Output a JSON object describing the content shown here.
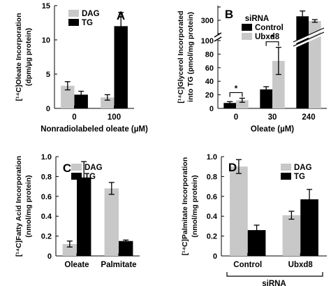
{
  "colors": {
    "DAG": "#c8c8c8",
    "TG": "#000000",
    "Control": "#000000",
    "Ubxd8": "#c8c8c8"
  },
  "chart_data": [
    {
      "panel": "A",
      "type": "bar",
      "ylabel_lines": [
        "[¹⁴C]Oleate Incorporation",
        "(dpm/µg protein)"
      ],
      "xlabel": "Nonradiolabeled oleate (µM)",
      "categories": [
        "0",
        "100"
      ],
      "ylim": [
        0,
        15
      ],
      "yticks": [
        "0",
        "5",
        "10",
        "15"
      ],
      "legend_position": "top-left",
      "series": [
        {
          "name": "DAG",
          "color_key": "DAG",
          "values": [
            3.3,
            1.6
          ],
          "errors": [
            0.6,
            0.4
          ]
        },
        {
          "name": "TG",
          "color_key": "TG",
          "values": [
            2.0,
            12.0
          ],
          "errors": [
            0.5,
            2.0
          ]
        }
      ],
      "significance": []
    },
    {
      "panel": "B",
      "type": "bar",
      "ylabel_lines": [
        "[¹⁴C]Glycerol Incorporated",
        "into TG (pmol/mg protein)"
      ],
      "xlabel": "Oleate (µM)",
      "categories": [
        "0",
        "30",
        "240"
      ],
      "ylim_lower": [
        0,
        100
      ],
      "yticks_lower": [
        "0",
        "20",
        "40",
        "60",
        "80",
        "100"
      ],
      "yticks_upper": [
        "200",
        "300",
        "400"
      ],
      "axis_break": true,
      "legend_title": "siRNA",
      "legend_position": "top-left",
      "series": [
        {
          "name": "Control",
          "color_key": "Control",
          "values": [
            8,
            28,
            330
          ],
          "errors": [
            2,
            4,
            40
          ]
        },
        {
          "name": "Ubxd8",
          "color_key": "Ubxd8",
          "values": [
            12,
            70,
            295
          ],
          "errors": [
            3,
            20,
            10
          ]
        }
      ],
      "significance": [
        {
          "category": "0",
          "text": "*"
        },
        {
          "category": "30",
          "text": "*"
        }
      ]
    },
    {
      "panel": "C",
      "type": "bar",
      "ylabel_lines": [
        "[¹⁴C]Fatty Acid Incorporation",
        "(nmol/mg protein)"
      ],
      "xlabel": "",
      "categories": [
        "Oleate",
        "Palmitate"
      ],
      "ylim": [
        0,
        1.0
      ],
      "yticks": [
        "0",
        "0.2",
        "0.4",
        "0.6",
        "0.8",
        "1.0"
      ],
      "legend_position": "top-left",
      "series": [
        {
          "name": "DAG",
          "color_key": "DAG",
          "values": [
            0.12,
            0.68
          ],
          "errors": [
            0.03,
            0.06
          ]
        },
        {
          "name": "TG",
          "color_key": "TG",
          "values": [
            0.79,
            0.15
          ],
          "errors": [
            0.16,
            0.01
          ]
        }
      ],
      "significance": []
    },
    {
      "panel": "D",
      "type": "bar",
      "ylabel_lines": [
        "[¹⁴C]Palmitate Incorporation",
        "(nmol/mg protein)"
      ],
      "xlabel": "siRNA",
      "xlabel_bracket": true,
      "categories": [
        "Control",
        "Ubxd8"
      ],
      "ylim": [
        0,
        1.0
      ],
      "yticks": [
        "0",
        "0.2",
        "0.4",
        "0.6",
        "0.8",
        "1.0"
      ],
      "legend_position": "top-right",
      "series": [
        {
          "name": "DAG",
          "color_key": "DAG",
          "values": [
            0.9,
            0.41
          ],
          "errors": [
            0.07,
            0.04
          ]
        },
        {
          "name": "TG",
          "color_key": "TG",
          "values": [
            0.26,
            0.57
          ],
          "errors": [
            0.05,
            0.1
          ]
        }
      ],
      "significance": []
    }
  ]
}
